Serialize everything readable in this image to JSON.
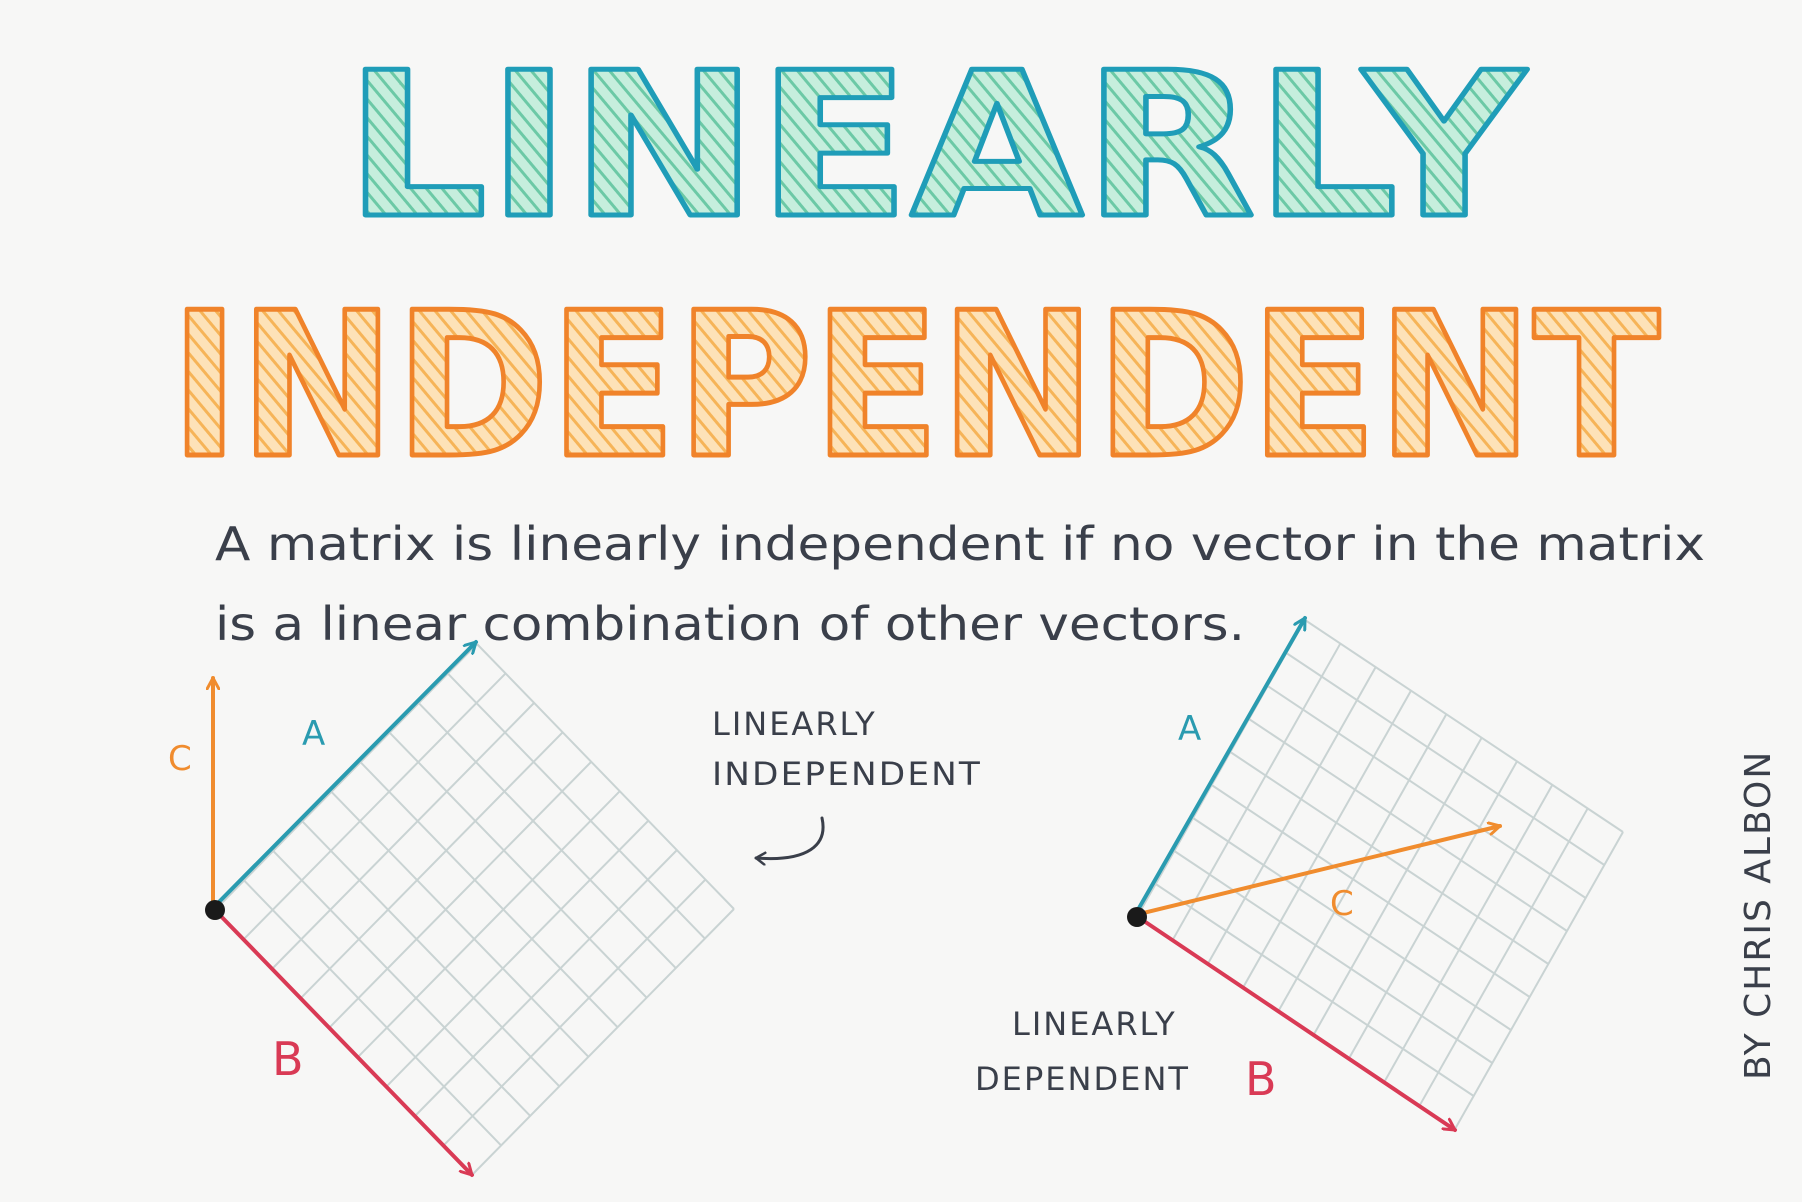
{
  "title": {
    "line1": "LINEARLY",
    "line2": "INDEPENDENT"
  },
  "definition": {
    "line1": "A matrix is linearly independent if no vector in the matrix",
    "line2": "is a linear combination of other vectors."
  },
  "independent_diagram": {
    "vector_a": "A",
    "vector_b": "B",
    "vector_c": "C",
    "label_line1": "LINEARLY",
    "label_line2": "INDEPENDENT"
  },
  "dependent_diagram": {
    "vector_a": "A",
    "vector_b": "B",
    "vector_c": "C",
    "label_line1": "LINEARLY",
    "label_line2": "DEPENDENT"
  },
  "author": "BY CHRIS ALBON",
  "colors": {
    "teal": "#2a9bb0",
    "teal_fill": "#7fd3b2",
    "orange": "#f08c2e",
    "orange_fill": "#f7bf6b",
    "red": "#d93a55",
    "ink": "#3a3f4a",
    "grid": "#c9d3d3"
  }
}
